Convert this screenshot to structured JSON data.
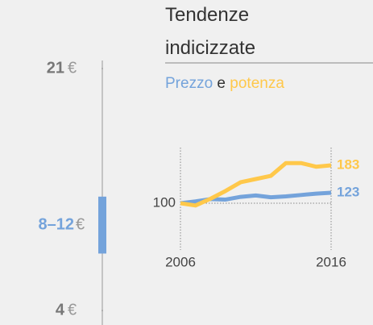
{
  "chart_data": [
    {
      "type": "range",
      "ylim": [
        4,
        21
      ],
      "yticks": [
        4,
        21
      ],
      "low": 8,
      "high": 12,
      "range_label": "8–12",
      "unit": "€",
      "color": "#74a3db"
    },
    {
      "type": "line",
      "title": "Tendenze indicizzate",
      "legend_joiner": "e",
      "x": [
        2006,
        2007,
        2008,
        2009,
        2010,
        2011,
        2012,
        2013,
        2014,
        2015,
        2016
      ],
      "series": [
        {
          "name": "Prezzo",
          "color": "#74a3db",
          "values": [
            100,
            104,
            109,
            108,
            114,
            117,
            113,
            115,
            118,
            121,
            123
          ]
        },
        {
          "name": "potenza",
          "color": "#ffc84a",
          "values": [
            100,
            95,
            110,
            127,
            146,
            153,
            160,
            188,
            188,
            180,
            183
          ]
        }
      ],
      "xlim": [
        2006,
        2016
      ],
      "xticks": [
        2006,
        2016
      ],
      "ylim": [
        90,
        200
      ],
      "yticks": [
        100
      ]
    }
  ]
}
